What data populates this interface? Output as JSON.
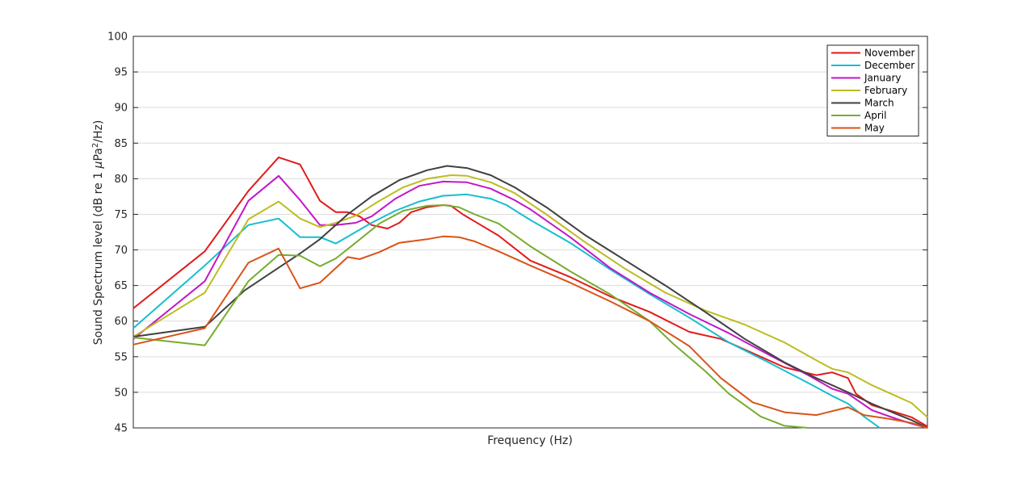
{
  "chart_data": {
    "type": "line",
    "title": "",
    "xlabel": "Frequency (Hz)",
    "ylabel": "Sound Spectrum level (dB re 1 μPa²/Hz)",
    "ylabel_parts": {
      "main": "Sound Spectrum level (dB re 1 ",
      "mu": "μ",
      "unit": "Pa",
      "sup": "2",
      "tail": "/Hz)"
    },
    "xlim": [
      0,
      1
    ],
    "ylim": [
      45,
      100
    ],
    "yticks": [
      45,
      50,
      55,
      60,
      65,
      70,
      75,
      80,
      85,
      90,
      95,
      100
    ],
    "x_tick_labels_shown": false,
    "grid": "horizontal",
    "legend_position": "top-right",
    "series": [
      {
        "name": "November",
        "color": "#e31a1c",
        "points": [
          [
            0,
            61.8
          ],
          [
            0.09,
            69.8
          ],
          [
            0.145,
            78.3
          ],
          [
            0.183,
            83.0
          ],
          [
            0.21,
            82.0
          ],
          [
            0.235,
            76.9
          ],
          [
            0.255,
            75.3
          ],
          [
            0.27,
            75.3
          ],
          [
            0.285,
            74.7
          ],
          [
            0.3,
            73.5
          ],
          [
            0.32,
            73.0
          ],
          [
            0.335,
            73.8
          ],
          [
            0.35,
            75.3
          ],
          [
            0.37,
            76.0
          ],
          [
            0.39,
            76.3
          ],
          [
            0.4,
            76.2
          ],
          [
            0.415,
            75.0
          ],
          [
            0.43,
            74.0
          ],
          [
            0.46,
            72.0
          ],
          [
            0.5,
            68.5
          ],
          [
            0.55,
            66.2
          ],
          [
            0.6,
            63.5
          ],
          [
            0.65,
            61.3
          ],
          [
            0.7,
            58.5
          ],
          [
            0.74,
            57.5
          ],
          [
            0.78,
            55.5
          ],
          [
            0.82,
            53.5
          ],
          [
            0.86,
            52.4
          ],
          [
            0.88,
            52.8
          ],
          [
            0.9,
            52.0
          ],
          [
            0.91,
            49.8
          ],
          [
            0.93,
            48.2
          ],
          [
            0.96,
            47.2
          ],
          [
            0.98,
            46.5
          ],
          [
            1.0,
            45.2
          ]
        ]
      },
      {
        "name": "December",
        "color": "#17becf",
        "points": [
          [
            0,
            59.0
          ],
          [
            0.09,
            67.8
          ],
          [
            0.145,
            73.5
          ],
          [
            0.183,
            74.4
          ],
          [
            0.21,
            71.8
          ],
          [
            0.235,
            71.8
          ],
          [
            0.255,
            70.9
          ],
          [
            0.3,
            73.8
          ],
          [
            0.33,
            75.5
          ],
          [
            0.36,
            76.8
          ],
          [
            0.39,
            77.6
          ],
          [
            0.42,
            77.8
          ],
          [
            0.45,
            77.2
          ],
          [
            0.47,
            76.3
          ],
          [
            0.5,
            74.2
          ],
          [
            0.55,
            71.0
          ],
          [
            0.6,
            67.3
          ],
          [
            0.65,
            63.8
          ],
          [
            0.7,
            60.5
          ],
          [
            0.75,
            57.0
          ],
          [
            0.8,
            54.2
          ],
          [
            0.85,
            51.3
          ],
          [
            0.88,
            49.5
          ],
          [
            0.9,
            48.4
          ],
          [
            0.92,
            46.6
          ],
          [
            0.94,
            45.0
          ]
        ]
      },
      {
        "name": "January",
        "color": "#c218c8",
        "points": [
          [
            0,
            57.5
          ],
          [
            0.09,
            65.6
          ],
          [
            0.145,
            76.9
          ],
          [
            0.183,
            80.4
          ],
          [
            0.21,
            77.0
          ],
          [
            0.235,
            73.5
          ],
          [
            0.255,
            73.5
          ],
          [
            0.28,
            73.8
          ],
          [
            0.3,
            74.7
          ],
          [
            0.33,
            77.2
          ],
          [
            0.36,
            79.0
          ],
          [
            0.39,
            79.6
          ],
          [
            0.42,
            79.5
          ],
          [
            0.45,
            78.6
          ],
          [
            0.48,
            77.0
          ],
          [
            0.5,
            75.7
          ],
          [
            0.55,
            71.8
          ],
          [
            0.6,
            67.5
          ],
          [
            0.65,
            64.0
          ],
          [
            0.7,
            61.0
          ],
          [
            0.75,
            58.3
          ],
          [
            0.8,
            55.3
          ],
          [
            0.85,
            52.4
          ],
          [
            0.88,
            50.5
          ],
          [
            0.9,
            49.8
          ],
          [
            0.93,
            47.5
          ],
          [
            0.96,
            46.3
          ],
          [
            0.98,
            45.6
          ],
          [
            1.0,
            45.0
          ]
        ]
      },
      {
        "name": "February",
        "color": "#bcbd22",
        "points": [
          [
            0,
            57.8
          ],
          [
            0.09,
            64.0
          ],
          [
            0.145,
            74.3
          ],
          [
            0.183,
            76.8
          ],
          [
            0.21,
            74.4
          ],
          [
            0.235,
            73.2
          ],
          [
            0.255,
            73.8
          ],
          [
            0.28,
            74.8
          ],
          [
            0.31,
            76.9
          ],
          [
            0.34,
            78.8
          ],
          [
            0.37,
            80.0
          ],
          [
            0.4,
            80.5
          ],
          [
            0.42,
            80.4
          ],
          [
            0.45,
            79.5
          ],
          [
            0.48,
            78.0
          ],
          [
            0.52,
            75.0
          ],
          [
            0.57,
            71.0
          ],
          [
            0.62,
            67.3
          ],
          [
            0.67,
            64.0
          ],
          [
            0.72,
            61.5
          ],
          [
            0.77,
            59.5
          ],
          [
            0.82,
            57.0
          ],
          [
            0.86,
            54.5
          ],
          [
            0.88,
            53.3
          ],
          [
            0.9,
            52.8
          ],
          [
            0.93,
            51.0
          ],
          [
            0.96,
            49.5
          ],
          [
            0.98,
            48.5
          ],
          [
            1.0,
            46.5
          ]
        ]
      },
      {
        "name": "March",
        "color": "#404040",
        "points": [
          [
            0,
            57.8
          ],
          [
            0.09,
            59.2
          ],
          [
            0.14,
            64.3
          ],
          [
            0.183,
            67.5
          ],
          [
            0.21,
            69.5
          ],
          [
            0.235,
            71.5
          ],
          [
            0.27,
            75.0
          ],
          [
            0.3,
            77.5
          ],
          [
            0.335,
            79.8
          ],
          [
            0.37,
            81.2
          ],
          [
            0.395,
            81.8
          ],
          [
            0.42,
            81.5
          ],
          [
            0.45,
            80.5
          ],
          [
            0.48,
            78.8
          ],
          [
            0.52,
            76.0
          ],
          [
            0.57,
            72.0
          ],
          [
            0.62,
            68.5
          ],
          [
            0.67,
            65.0
          ],
          [
            0.72,
            61.3
          ],
          [
            0.77,
            57.5
          ],
          [
            0.82,
            54.2
          ],
          [
            0.86,
            52.0
          ],
          [
            0.9,
            50.0
          ],
          [
            0.93,
            48.4
          ],
          [
            0.96,
            47.0
          ],
          [
            0.98,
            46.1
          ],
          [
            1.0,
            45.0
          ]
        ]
      },
      {
        "name": "April",
        "color": "#77ac30",
        "points": [
          [
            0,
            57.7
          ],
          [
            0.09,
            56.6
          ],
          [
            0.145,
            65.6
          ],
          [
            0.183,
            69.3
          ],
          [
            0.21,
            69.2
          ],
          [
            0.235,
            67.7
          ],
          [
            0.255,
            68.8
          ],
          [
            0.28,
            71.0
          ],
          [
            0.31,
            73.7
          ],
          [
            0.34,
            75.5
          ],
          [
            0.37,
            76.2
          ],
          [
            0.39,
            76.3
          ],
          [
            0.41,
            76.0
          ],
          [
            0.43,
            75.0
          ],
          [
            0.46,
            73.7
          ],
          [
            0.5,
            70.5
          ],
          [
            0.55,
            67.0
          ],
          [
            0.6,
            63.8
          ],
          [
            0.65,
            60.0
          ],
          [
            0.68,
            56.8
          ],
          [
            0.72,
            53.0
          ],
          [
            0.75,
            49.8
          ],
          [
            0.79,
            46.6
          ],
          [
            0.82,
            45.3
          ],
          [
            0.85,
            45.0
          ]
        ]
      },
      {
        "name": "May",
        "color": "#d95319",
        "points": [
          [
            0,
            56.7
          ],
          [
            0.09,
            59.0
          ],
          [
            0.145,
            68.2
          ],
          [
            0.183,
            70.2
          ],
          [
            0.21,
            64.6
          ],
          [
            0.235,
            65.4
          ],
          [
            0.27,
            69.0
          ],
          [
            0.285,
            68.7
          ],
          [
            0.31,
            69.7
          ],
          [
            0.335,
            71.0
          ],
          [
            0.37,
            71.5
          ],
          [
            0.39,
            71.9
          ],
          [
            0.41,
            71.8
          ],
          [
            0.43,
            71.2
          ],
          [
            0.46,
            69.8
          ],
          [
            0.5,
            67.8
          ],
          [
            0.55,
            65.4
          ],
          [
            0.6,
            62.8
          ],
          [
            0.65,
            60.0
          ],
          [
            0.7,
            56.5
          ],
          [
            0.74,
            52.0
          ],
          [
            0.78,
            48.6
          ],
          [
            0.82,
            47.2
          ],
          [
            0.86,
            46.8
          ],
          [
            0.9,
            47.9
          ],
          [
            0.92,
            46.8
          ],
          [
            0.95,
            46.3
          ],
          [
            0.98,
            45.7
          ],
          [
            1.0,
            45.0
          ]
        ]
      }
    ]
  }
}
